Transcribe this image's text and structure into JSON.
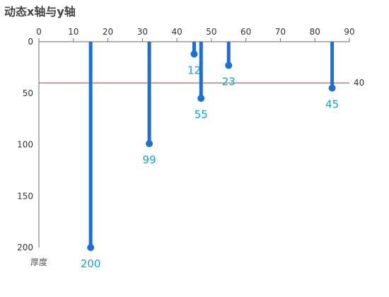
{
  "chart_data": {
    "type": "bar",
    "title": "动态x轴与y轴",
    "xlabel": "",
    "ylabel": "厚度",
    "x_ticks": [
      "0",
      "10",
      "20",
      "30",
      "40",
      "50",
      "60",
      "70",
      "80",
      "90"
    ],
    "y_ticks": [
      "0",
      "50",
      "100",
      "150",
      "200"
    ],
    "xlim": [
      0,
      90
    ],
    "ylim": [
      0,
      200
    ],
    "y_inverted": true,
    "x_axis_position": "top",
    "grid": false,
    "points": [
      {
        "x": 15,
        "y": 200,
        "label": "200"
      },
      {
        "x": 32,
        "y": 99,
        "label": "99"
      },
      {
        "x": 45,
        "y": 12,
        "label": "12"
      },
      {
        "x": 47,
        "y": 55,
        "label": "55"
      },
      {
        "x": 55,
        "y": 23,
        "label": "23"
      },
      {
        "x": 85,
        "y": 45,
        "label": "45"
      }
    ],
    "mark_line": {
      "value": 40,
      "label": "40"
    },
    "colors": {
      "bar": "#1e6fd0",
      "label": "#1a9fc9",
      "mark_line": "#c23531",
      "axis": "#6e6e6e",
      "title": "#464646"
    }
  }
}
